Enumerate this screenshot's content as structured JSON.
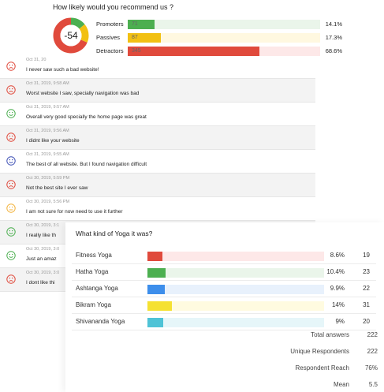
{
  "nps": {
    "title": "How likely would you recommend us ?",
    "score": "-54",
    "rows": [
      {
        "label": "Promoters",
        "count": "71",
        "percent": "14.1%",
        "fraction": 0.141,
        "track": "#eaf5ea",
        "color": "#4caf50"
      },
      {
        "label": "Passives",
        "count": "87",
        "percent": "17.3%",
        "fraction": 0.173,
        "track": "#fff8e0",
        "color": "#f2c012"
      },
      {
        "label": "Detractors",
        "count": "345",
        "percent": "68.6%",
        "fraction": 0.686,
        "track": "#fde8e8",
        "color": "#e04a3c"
      }
    ]
  },
  "feedback": [
    {
      "date": "Oct 31, 20",
      "text": "I never saw such a bad website!",
      "mood": "sad",
      "color": "#e04a3c"
    },
    {
      "date": "Oct 31, 2019, 9:58 AM",
      "text": "Worst website I saw, specially navigation was bad",
      "mood": "sad",
      "color": "#e04a3c"
    },
    {
      "date": "Oct 31, 2019, 9:57 AM",
      "text": "Overall very good specially the home page was great",
      "mood": "happy",
      "color": "#4caf50"
    },
    {
      "date": "Oct 31, 2019, 9:56 AM",
      "text": "I didnt like your website",
      "mood": "sad",
      "color": "#e04a3c"
    },
    {
      "date": "Oct 31, 2019, 9:55 AM",
      "text": "The best of all website. But I found navigation difficult",
      "mood": "happy",
      "color": "#3f51b5"
    },
    {
      "date": "Oct 30, 2019, 5:59 PM",
      "text": "Not the best site I ever saw",
      "mood": "sad",
      "color": "#e04a3c"
    },
    {
      "date": "Oct 30, 2019, 5:56 PM",
      "text": "I am not sure for now need to use it further",
      "mood": "neutral",
      "color": "#f2b23a"
    },
    {
      "date": "Oct 30, 2019, 3:1",
      "text": "I really like th",
      "mood": "happy",
      "color": "#4caf50"
    },
    {
      "date": "Oct 30, 2019, 3:0",
      "text": "Just an amaz",
      "mood": "happy",
      "color": "#4caf50"
    },
    {
      "date": "Oct 30, 2019, 3:0",
      "text": "I dont like thi",
      "mood": "sad",
      "color": "#e04a3c"
    }
  ],
  "yoga": {
    "title": "What kind of Yoga it was?",
    "rows": [
      {
        "label": "Fitness Yoga",
        "percent": "8.6%",
        "count": "19",
        "fraction": 0.086,
        "track": "#fde8e8",
        "color": "#e04a3c"
      },
      {
        "label": "Hatha Yoga",
        "percent": "10.4%",
        "count": "23",
        "fraction": 0.104,
        "track": "#eaf5ea",
        "color": "#4caf50"
      },
      {
        "label": "Ashtanga Yoga",
        "percent": "9.9%",
        "count": "22",
        "fraction": 0.099,
        "track": "#e8f1fc",
        "color": "#3d8eeb"
      },
      {
        "label": "Bikram Yoga",
        "percent": "14%",
        "count": "31",
        "fraction": 0.14,
        "track": "#fffbe0",
        "color": "#f5e132"
      },
      {
        "label": "Shivananda Yoga",
        "percent": "9%",
        "count": "20",
        "fraction": 0.09,
        "track": "#e6f6f9",
        "color": "#4fc3d6"
      }
    ],
    "stats": [
      {
        "label": "Total answers",
        "value": "222"
      },
      {
        "label": "Unique Respondents",
        "value": "222"
      },
      {
        "label": "Respondent Reach",
        "value": "76%"
      },
      {
        "label": "Mean",
        "value": "5.5"
      }
    ]
  }
}
